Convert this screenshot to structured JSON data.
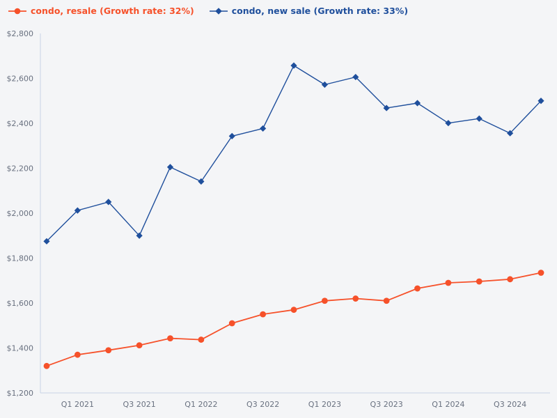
{
  "legend": {
    "items": [
      {
        "label": "condo, resale (Growth rate: 32%)",
        "color": "#f6512a",
        "marker": "circle"
      },
      {
        "label": "condo, new sale (Growth rate: 33%)",
        "color": "#1f4f9c",
        "marker": "diamond"
      }
    ]
  },
  "chart_data": {
    "type": "line",
    "title": "",
    "xlabel": "",
    "ylabel": "",
    "categories": [
      "Q4 2020",
      "Q1 2021",
      "Q2 2021",
      "Q3 2021",
      "Q4 2021",
      "Q1 2022",
      "Q2 2022",
      "Q3 2022",
      "Q4 2022",
      "Q1 2023",
      "Q2 2023",
      "Q3 2023",
      "Q4 2023",
      "Q1 2024",
      "Q2 2024",
      "Q3 2024",
      "Q4 2024"
    ],
    "series": [
      {
        "name": "condo, resale",
        "growth_rate": "32%",
        "color": "#f6512a",
        "marker": "circle",
        "values": [
          1320,
          1370,
          1390,
          1412,
          1443,
          1437,
          1510,
          1550,
          1570,
          1610,
          1620,
          1610,
          1665,
          1690,
          1696,
          1706,
          1735
        ]
      },
      {
        "name": "condo, new sale",
        "growth_rate": "33%",
        "color": "#1f4f9c",
        "marker": "diamond",
        "values": [
          1875,
          2012,
          2050,
          1900,
          2205,
          2141,
          2343,
          2377,
          2657,
          2572,
          2606,
          2468,
          2490,
          2401,
          2421,
          2356,
          2500
        ]
      }
    ],
    "ylim": [
      1200,
      2800
    ],
    "y_tick_step": 200,
    "y_tick_labels": [
      "$1,200",
      "$1,400",
      "$1,600",
      "$1,800",
      "$2,000",
      "$2,200",
      "$2,400",
      "$2,600",
      "$2,800"
    ],
    "x_tick_indices": [
      1,
      3,
      5,
      7,
      9,
      11,
      13,
      15
    ],
    "x_tick_labels": [
      "Q1 2021",
      "Q3 2021",
      "Q1 2022",
      "Q3 2022",
      "Q1 2023",
      "Q3 2023",
      "Q1 2024",
      "Q3 2024"
    ],
    "grid": false,
    "legend_position": "top-left",
    "colors": {
      "background": "#f4f5f7",
      "axis_line": "#c7d2e6",
      "tick_text": "#68707f"
    }
  }
}
